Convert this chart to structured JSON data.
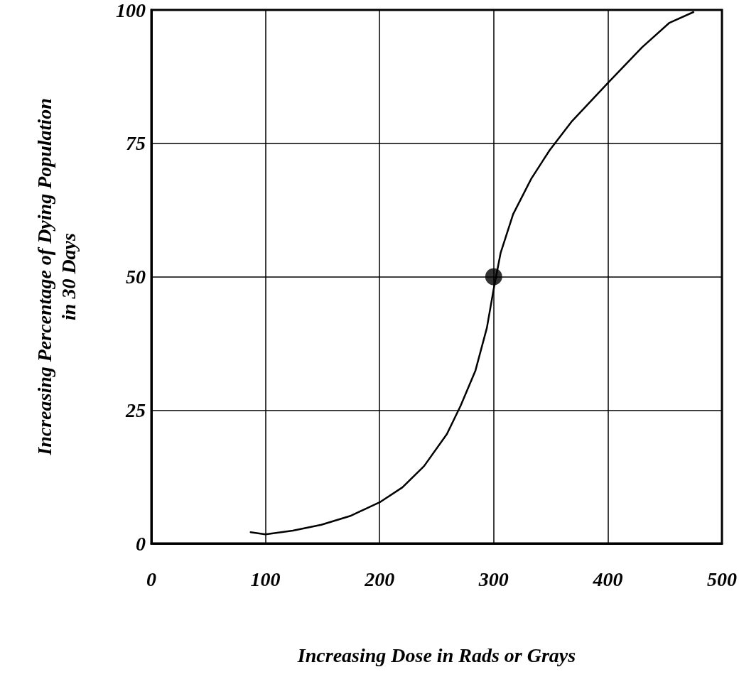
{
  "chart_data": {
    "type": "line",
    "xlabel": "Increasing Dose in Rads or Grays",
    "ylabel": "Increasing Percentage of Dying Population\nin 30 Days",
    "xlim": [
      0,
      500
    ],
    "xticks": [
      0,
      100,
      200,
      300,
      400,
      500
    ],
    "ylim": [
      0,
      100
    ],
    "yticks": [
      0,
      25,
      50,
      75,
      100
    ],
    "grid": true,
    "marker": "none",
    "line_style": "solid",
    "series": [
      {
        "color": "#000000",
        "x": [
          87,
          100,
          124,
          149,
          175,
          200,
          220,
          239,
          259,
          271,
          284,
          294,
          300,
          306,
          317,
          333,
          349,
          368,
          400,
          430,
          454,
          475
        ],
        "values": [
          2.1,
          1.7,
          2.4,
          3.5,
          5.2,
          7.7,
          10.5,
          14.5,
          20.5,
          25.8,
          32.4,
          40.4,
          47.7,
          54.4,
          61.7,
          68.4,
          73.7,
          79,
          86.3,
          93,
          97.6,
          99.6
        ]
      },
      {
        "type": "scatter",
        "color": "#000000",
        "marker": "circle",
        "x": [
          300
        ],
        "values": [
          50
        ]
      }
    ]
  }
}
